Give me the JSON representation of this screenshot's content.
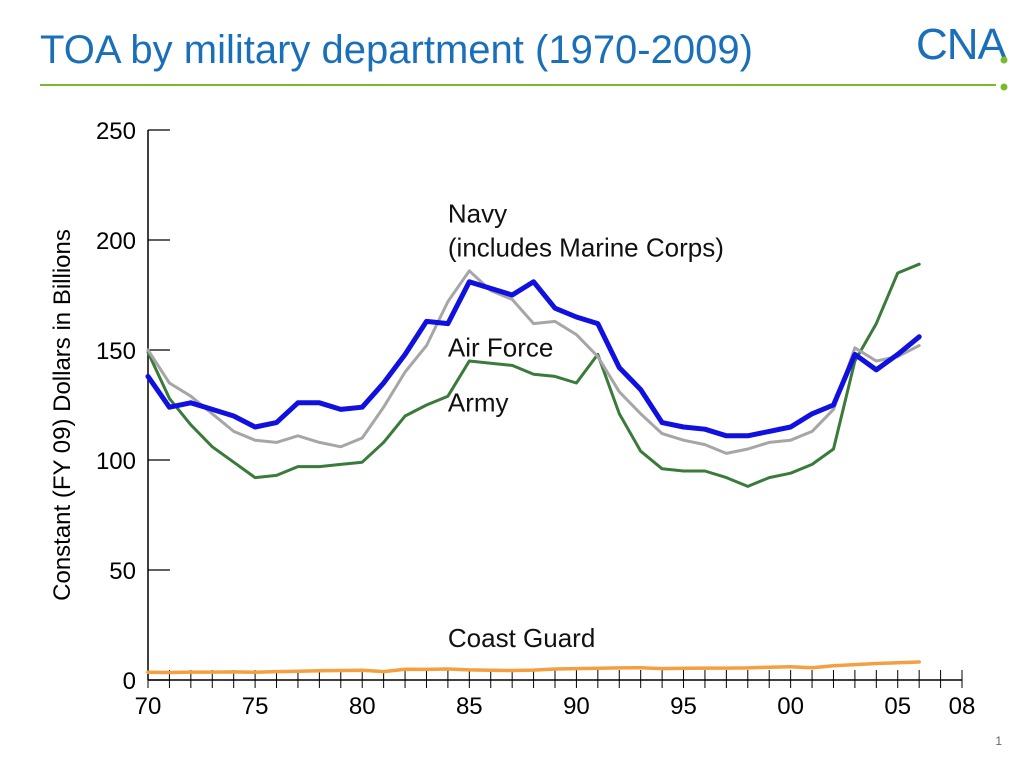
{
  "slide": {
    "title": "TOA by military department (1970-2009)",
    "logo_text": "CNA",
    "page_number": "1"
  },
  "colors": {
    "title": "#1a70b8",
    "rule": "#7ab929",
    "logo_dot": "#7ab929",
    "navy": "#1010e0",
    "air_force": "#a6a6a6",
    "army": "#3a7a3a",
    "coast_guard": "#f5a040"
  },
  "chart_data": {
    "type": "line",
    "title": "",
    "xlabel": "",
    "ylabel": "Constant (FY 09) Dollars in Billions",
    "xlim": [
      1970,
      2008
    ],
    "ylim": [
      0,
      250
    ],
    "yticks": [
      0,
      50,
      100,
      150,
      200,
      250
    ],
    "xtick_labels": [
      "70",
      "75",
      "80",
      "85",
      "90",
      "95",
      "00",
      "05",
      "08"
    ],
    "xtick_values": [
      1970,
      1975,
      1980,
      1985,
      1990,
      1995,
      2000,
      2005,
      2008
    ],
    "grid": false,
    "legend": "inline labels",
    "x": [
      1970,
      1971,
      1972,
      1973,
      1974,
      1975,
      1976,
      1977,
      1978,
      1979,
      1980,
      1981,
      1982,
      1983,
      1984,
      1985,
      1986,
      1987,
      1988,
      1989,
      1990,
      1991,
      1992,
      1993,
      1994,
      1995,
      1996,
      1997,
      1998,
      1999,
      2000,
      2001,
      2002,
      2003,
      2004,
      2005,
      2006
    ],
    "series": [
      {
        "key": "navy",
        "name": "Navy\n(includes Marine Corps)",
        "label_lines": [
          "Navy",
          "(includes Marine Corps)"
        ],
        "values": [
          138,
          124,
          126,
          123,
          120,
          115,
          117,
          126,
          126,
          123,
          124,
          135,
          148,
          163,
          162,
          181,
          178,
          175,
          181,
          169,
          165,
          162,
          142,
          132,
          117,
          115,
          114,
          111,
          111,
          113,
          115,
          121,
          125,
          148,
          141,
          148,
          156
        ]
      },
      {
        "key": "air_force",
        "name": "Air Force",
        "label_lines": [
          "Air Force"
        ],
        "values": [
          150,
          135,
          129,
          121,
          113,
          109,
          108,
          111,
          108,
          106,
          110,
          124,
          140,
          152,
          172,
          186,
          177,
          173,
          162,
          163,
          157,
          147,
          131,
          121,
          112,
          109,
          107,
          103,
          105,
          108,
          109,
          113,
          123,
          151,
          145,
          147,
          152
        ]
      },
      {
        "key": "army",
        "name": "Army",
        "label_lines": [
          "Army"
        ],
        "values": [
          149,
          128,
          116,
          106,
          99,
          92,
          93,
          97,
          97,
          98,
          99,
          108,
          120,
          125,
          129,
          145,
          144,
          143,
          139,
          138,
          135,
          148,
          121,
          104,
          96,
          95,
          95,
          92,
          88,
          92,
          94,
          98,
          105,
          145,
          162,
          185,
          189
        ]
      },
      {
        "key": "coast_guard",
        "name": "Coast Guard",
        "label_lines": [
          "Coast Guard"
        ],
        "values": [
          3.5,
          3.4,
          3.6,
          3.6,
          3.7,
          3.5,
          3.8,
          4,
          4.2,
          4.3,
          4.4,
          3.8,
          4.9,
          4.8,
          5,
          4.6,
          4.4,
          4.3,
          4.5,
          5,
          5.2,
          5.3,
          5.5,
          5.6,
          5.2,
          5.3,
          5.4,
          5.4,
          5.5,
          5.8,
          6,
          5.6,
          6.5,
          7,
          7.5,
          7.8,
          8.2
        ]
      }
    ]
  }
}
